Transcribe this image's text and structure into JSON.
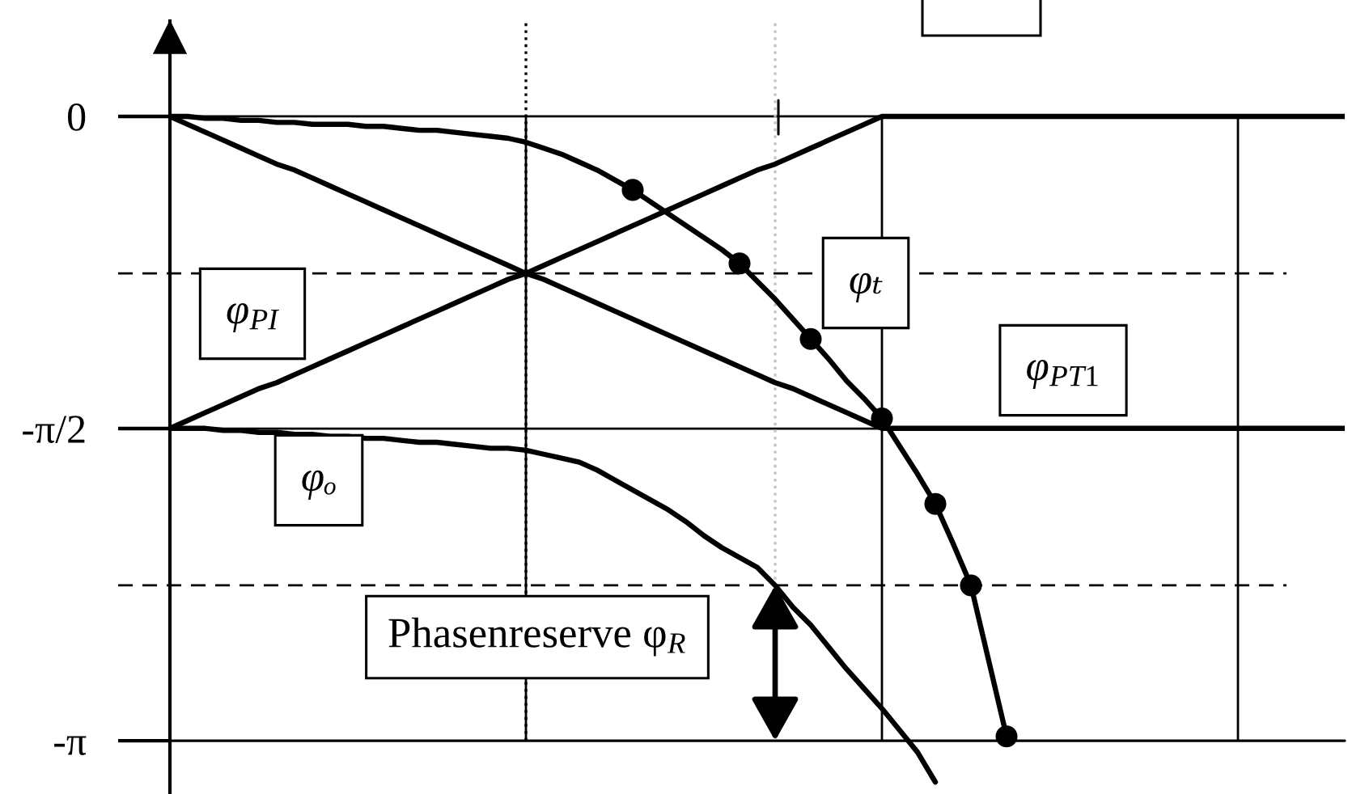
{
  "chart_data": {
    "type": "line",
    "categories": [
      null,
      null,
      null,
      null,
      null,
      null,
      null,
      null,
      null,
      null,
      null,
      null,
      null,
      null,
      null,
      null,
      null,
      null,
      null,
      null,
      null,
      null,
      null,
      null,
      null,
      null,
      null,
      null,
      null,
      null,
      null,
      null,
      null,
      null,
      null,
      null,
      null,
      null,
      null,
      null,
      null,
      null,
      null,
      null,
      null,
      null,
      null,
      null,
      null,
      null,
      null,
      null,
      null,
      null,
      null,
      null,
      null,
      null,
      null,
      null,
      null,
      null,
      null,
      null,
      null,
      null,
      null
    ],
    "series": [
      {
        "name": "φ$_{PI}$",
        "color": "#000000",
        "values": [
          -1.57,
          -1.53,
          -1.49,
          -1.45,
          -1.41,
          -1.37,
          -1.34,
          -1.3,
          -1.26,
          -1.22,
          -1.18,
          -1.14,
          -1.1,
          -1.06,
          -1.02,
          -0.98,
          -0.94,
          -0.9,
          -0.86,
          -0.82,
          -0.79,
          -0.75,
          -0.71,
          -0.67,
          -0.63,
          -0.59,
          -0.55,
          -0.51,
          -0.47,
          -0.43,
          -0.39,
          -0.35,
          -0.31,
          -0.27,
          -0.24,
          -0.2,
          -0.16,
          -0.12,
          -0.08,
          -0.04,
          0,
          0,
          0,
          0,
          0,
          0,
          0,
          0,
          0,
          0,
          0,
          0,
          0,
          0,
          0,
          0,
          0,
          0,
          0,
          0,
          0,
          0,
          0,
          0,
          0,
          0,
          0
        ]
      },
      {
        "name": "φ$_{PT1}$",
        "color": "#000000",
        "values": [
          0,
          -0.04,
          -0.08,
          -0.12,
          -0.16,
          -0.2,
          -0.24,
          -0.27,
          -0.31,
          -0.35,
          -0.39,
          -0.43,
          -0.47,
          -0.51,
          -0.55,
          -0.59,
          -0.63,
          -0.67,
          -0.71,
          -0.75,
          -0.79,
          -0.82,
          -0.86,
          -0.9,
          -0.94,
          -0.98,
          -1.02,
          -1.06,
          -1.1,
          -1.14,
          -1.18,
          -1.22,
          -1.26,
          -1.3,
          -1.34,
          -1.37,
          -1.41,
          -1.45,
          -1.49,
          -1.53,
          -1.57,
          -1.57,
          -1.57,
          -1.57,
          -1.57,
          -1.57,
          -1.57,
          -1.57,
          -1.57,
          -1.57,
          -1.57,
          -1.57,
          -1.57,
          -1.57,
          -1.57,
          -1.57,
          -1.57,
          -1.57,
          -1.57,
          -1.57,
          -1.57,
          -1.57,
          -1.57,
          -1.57,
          -1.57,
          -1.57,
          -1.57
        ]
      },
      {
        "name": "φₜ",
        "color": "#000000",
        "values": [
          0,
          0,
          -0.01,
          -0.01,
          -0.02,
          -0.02,
          -0.03,
          -0.03,
          -0.04,
          -0.04,
          -0.04,
          -0.05,
          -0.05,
          -0.06,
          -0.07,
          -0.07,
          -0.08,
          -0.09,
          -0.1,
          -0.11,
          -0.13,
          -0.16,
          -0.19,
          -0.23,
          -0.27,
          -0.32,
          -0.37,
          -0.43,
          -0.49,
          -0.55,
          -0.61,
          -0.67,
          -0.74,
          -0.83,
          -0.92,
          -1.02,
          -1.12,
          -1.22,
          -1.33,
          -1.42,
          -1.52,
          -1.66,
          -1.8,
          -1.95,
          -2.15,
          -2.36,
          -2.74,
          -3.12,
          null,
          null,
          null,
          null,
          null,
          null,
          null,
          null,
          null,
          null,
          null,
          null,
          null,
          null,
          null,
          null,
          null,
          null,
          null
        ]
      },
      {
        "name": "φₒ",
        "color": "#000000",
        "values": [
          -1.57,
          -1.57,
          -1.57,
          -1.58,
          -1.58,
          -1.59,
          -1.59,
          -1.6,
          -1.6,
          -1.61,
          -1.61,
          -1.62,
          -1.62,
          -1.63,
          -1.64,
          -1.64,
          -1.65,
          -1.66,
          -1.67,
          -1.67,
          -1.68,
          -1.7,
          -1.72,
          -1.74,
          -1.78,
          -1.83,
          -1.88,
          -1.93,
          -1.98,
          -2.04,
          -2.11,
          -2.17,
          -2.22,
          -2.27,
          -2.36,
          -2.47,
          -2.56,
          -2.67,
          -2.78,
          -2.88,
          -2.98,
          -3.09,
          -3.2,
          -3.35,
          null,
          null,
          null,
          null,
          null,
          null,
          null,
          null,
          null,
          null,
          null,
          null,
          null,
          null,
          null,
          null,
          null,
          null,
          null,
          null,
          null,
          null,
          null
        ]
      },
      {
        "type": "scatter",
        "marker": "circle",
        "color": "#000000",
        "values": [
          null,
          null,
          null,
          null,
          null,
          null,
          null,
          null,
          null,
          null,
          null,
          null,
          null,
          null,
          null,
          null,
          null,
          null,
          null,
          null,
          null,
          null,
          null,
          null,
          null,
          null,
          -0.37,
          null,
          null,
          null,
          null,
          null,
          -0.74,
          null,
          null,
          null,
          -1.12,
          null,
          null,
          null,
          -1.52,
          null,
          null,
          -1.95,
          null,
          -2.36,
          null,
          -3.12,
          null,
          null,
          null,
          null,
          null,
          null,
          null,
          null,
          null,
          null,
          null,
          null,
          null,
          null,
          null,
          null,
          null,
          null,
          null
        ]
      }
    ],
    "ylim": [
      -3.41,
      0.48
    ],
    "yticks": [
      0,
      {
        "value": -1.571,
        "label": "-π/2"
      },
      {
        "value": -3.142,
        "label": "-π"
      }
    ],
    "grid": true,
    "ref_lines": [
      {
        "axis": "y",
        "value": -0.79,
        "line_style": "dashed",
        "color": "#000000"
      },
      {
        "axis": "y",
        "value": -2.36,
        "line_style": "dashed",
        "color": "#000000"
      }
    ],
    "annotations": [
      "Phasenreserve φ$_{R}$"
    ]
  }
}
